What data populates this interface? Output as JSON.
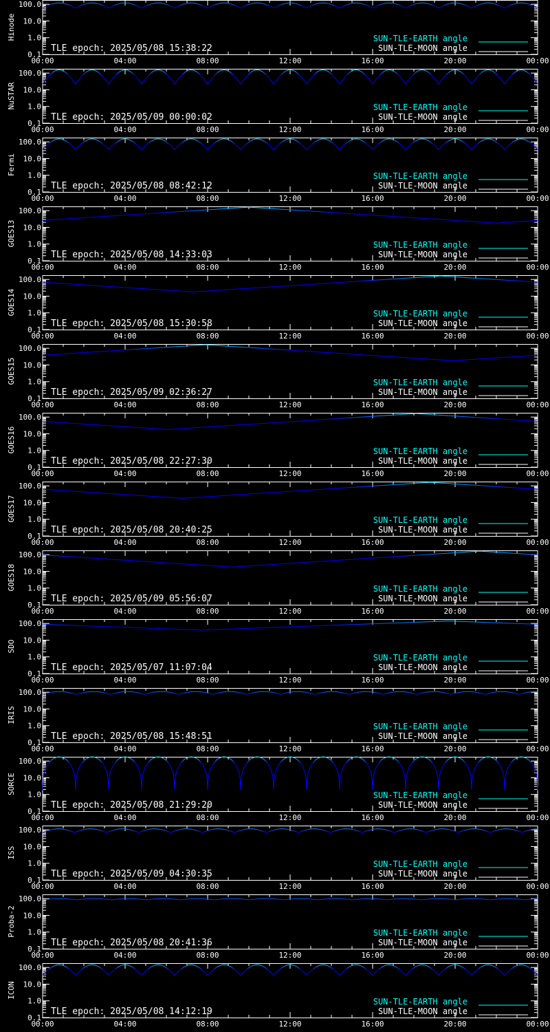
{
  "x_ticks": [
    "00:00",
    "04:00",
    "08:00",
    "12:00",
    "16:00",
    "20:00",
    "00:00"
  ],
  "y_ticks": [
    "0.1",
    "1.0",
    "10.0",
    "100.0"
  ],
  "legend": {
    "earth_label": "SUN-TLE-EARTH angle",
    "moon_label": "SUN-TLE-MOON angle"
  },
  "epoch_prefix": "TLE epoch:",
  "colors": {
    "background": "#000000",
    "axes": "#ffffff",
    "earth": "#00ffff",
    "moon": "#ffffff",
    "curve_low": "#0000ff"
  },
  "chart_data": [
    {
      "type": "line",
      "title": "",
      "ylabel": "Hinode",
      "epoch": "2025/05/08 15:38:22",
      "x_range_hours": [
        0,
        24
      ],
      "ylim": [
        0.1,
        180
      ],
      "log_y": true,
      "curve": "periodic",
      "period_hours": 1.6,
      "min_deg": 60,
      "max_deg": 120
    },
    {
      "type": "line",
      "title": "",
      "ylabel": "NuSTAR",
      "epoch": "2025/05/09 00:00:02",
      "x_range_hours": [
        0,
        24
      ],
      "ylim": [
        0.1,
        180
      ],
      "log_y": true,
      "curve": "periodic",
      "period_hours": 1.6,
      "min_deg": 22,
      "max_deg": 155
    },
    {
      "type": "line",
      "title": "",
      "ylabel": "Fermi",
      "epoch": "2025/05/08 08:42:12",
      "x_range_hours": [
        0,
        24
      ],
      "ylim": [
        0.1,
        180
      ],
      "log_y": true,
      "curve": "periodic",
      "period_hours": 1.6,
      "min_deg": 35,
      "max_deg": 150
    },
    {
      "type": "line",
      "title": "",
      "ylabel": "GOES13",
      "epoch": "2025/05/08 14:33:03",
      "x_range_hours": [
        0,
        24
      ],
      "ylim": [
        0.1,
        180
      ],
      "log_y": true,
      "curve": "daily",
      "min_hour": 22.0,
      "min_deg": 18,
      "max_deg": 162
    },
    {
      "type": "line",
      "title": "",
      "ylabel": "GOES14",
      "epoch": "2025/05/08 15:30:58",
      "x_range_hours": [
        0,
        24
      ],
      "ylim": [
        0.1,
        180
      ],
      "log_y": true,
      "curve": "daily",
      "min_hour": 7.3,
      "min_deg": 18,
      "max_deg": 162
    },
    {
      "type": "line",
      "title": "",
      "ylabel": "GOES15",
      "epoch": "2025/05/09 02:36:27",
      "x_range_hours": [
        0,
        24
      ],
      "ylim": [
        0.1,
        180
      ],
      "log_y": true,
      "curve": "daily",
      "min_hour": 19.9,
      "min_deg": 18,
      "max_deg": 162
    },
    {
      "type": "line",
      "title": "",
      "ylabel": "GOES16",
      "epoch": "2025/05/08 22:27:30",
      "x_range_hours": [
        0,
        24
      ],
      "ylim": [
        0.1,
        180
      ],
      "log_y": true,
      "curve": "daily",
      "min_hour": 6.1,
      "min_deg": 18,
      "max_deg": 162
    },
    {
      "type": "line",
      "title": "",
      "ylabel": "GOES17",
      "epoch": "2025/05/08 20:40:25",
      "x_range_hours": [
        0,
        24
      ],
      "ylim": [
        0.1,
        180
      ],
      "log_y": true,
      "curve": "daily",
      "min_hour": 6.8,
      "min_deg": 18,
      "max_deg": 162
    },
    {
      "type": "line",
      "title": "",
      "ylabel": "GOES18",
      "epoch": "2025/05/09 05:56:07",
      "x_range_hours": [
        0,
        24
      ],
      "ylim": [
        0.1,
        180
      ],
      "log_y": true,
      "curve": "daily",
      "min_hour": 9.2,
      "min_deg": 18,
      "max_deg": 162
    },
    {
      "type": "line",
      "title": "",
      "ylabel": "SDO",
      "epoch": "2025/05/07 11:07:04",
      "x_range_hours": [
        0,
        24
      ],
      "ylim": [
        0.1,
        180
      ],
      "log_y": true,
      "curve": "daily",
      "min_hour": 7.7,
      "min_deg": 40,
      "max_deg": 140
    },
    {
      "type": "line",
      "title": "",
      "ylabel": "IRIS",
      "epoch": "2025/05/08 15:48:51",
      "x_range_hours": [
        0,
        24
      ],
      "ylim": [
        0.1,
        180
      ],
      "log_y": true,
      "curve": "periodic",
      "period_hours": 1.65,
      "min_deg": 75,
      "max_deg": 110
    },
    {
      "type": "line",
      "title": "",
      "ylabel": "SORCE",
      "epoch": "2025/05/08 21:29:20",
      "x_range_hours": [
        0,
        24
      ],
      "ylim": [
        0.1,
        180
      ],
      "log_y": true,
      "curve": "periodic",
      "period_hours": 1.6,
      "min_deg": 1.8,
      "max_deg": 178
    },
    {
      "type": "line",
      "title": "",
      "ylabel": "ISS",
      "epoch": "2025/05/09 04:30:35",
      "x_range_hours": [
        0,
        24
      ],
      "ylim": [
        0.1,
        180
      ],
      "log_y": true,
      "curve": "periodic",
      "period_hours": 1.55,
      "min_deg": 70,
      "max_deg": 115
    },
    {
      "type": "line",
      "title": "",
      "ylabel": "Proba-2",
      "epoch": "2025/05/08 20:41:36",
      "x_range_hours": [
        0,
        24
      ],
      "ylim": [
        0.1,
        180
      ],
      "log_y": true,
      "curve": "periodic",
      "period_hours": 1.67,
      "min_deg": 85,
      "max_deg": 100
    },
    {
      "type": "line",
      "title": "",
      "ylabel": "ICON",
      "epoch": "2025/05/08 14:12:19",
      "x_range_hours": [
        0,
        24
      ],
      "ylim": [
        0.1,
        180
      ],
      "log_y": true,
      "curve": "periodic",
      "period_hours": 1.6,
      "min_deg": 35,
      "max_deg": 145
    }
  ]
}
